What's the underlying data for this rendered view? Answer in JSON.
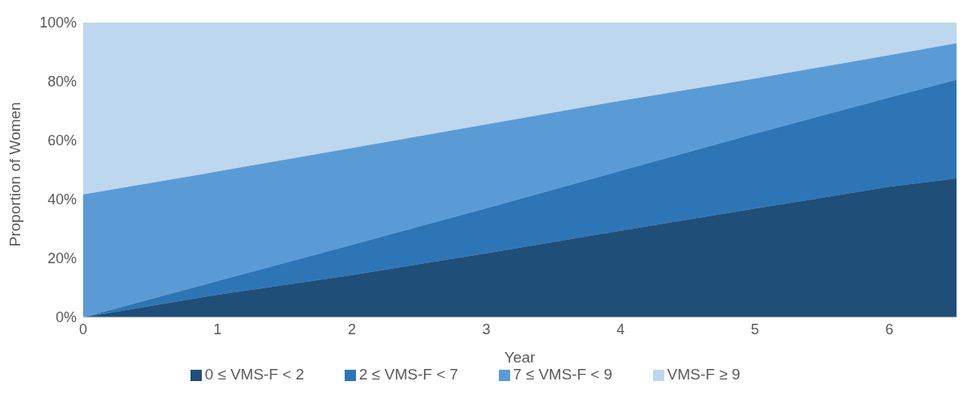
{
  "chart_data": {
    "type": "area",
    "stacked": true,
    "xlabel": "Year",
    "ylabel": "Proportion of Women",
    "x": [
      0,
      1,
      2,
      3,
      4,
      5,
      6,
      6.5
    ],
    "series": [
      {
        "name": "0 ≤ VMS-F < 2",
        "color": "#1f4e79",
        "values": [
          0,
          7.7,
          14.3,
          21.7,
          29.4,
          36.9,
          44.3,
          47.1
        ]
      },
      {
        "name": "2 ≤ VMS-F < 7",
        "color": "#2e75b6",
        "values": [
          0,
          4.6,
          10.3,
          15.3,
          20.3,
          25.4,
          30.3,
          33.5
        ]
      },
      {
        "name": "7 ≤ VMS-F < 9",
        "color": "#5b9bd5",
        "values": [
          41.7,
          37.2,
          32.9,
          28.5,
          23.8,
          18.7,
          14.4,
          12.4
        ]
      },
      {
        "name": "VMS-F ≥ 9",
        "color": "#bdd7ee",
        "values": [
          58.3,
          50.5,
          42.5,
          34.5,
          26.5,
          19,
          11,
          7
        ]
      }
    ],
    "xlim": [
      0,
      6.5
    ],
    "xticks": [
      0,
      1,
      2,
      3,
      4,
      5,
      6
    ],
    "ylim": [
      0,
      100
    ],
    "yticks": [
      {
        "value": 0,
        "label": "0%"
      },
      {
        "value": 20,
        "label": "20%"
      },
      {
        "value": 40,
        "label": "40%"
      },
      {
        "value": 60,
        "label": "60%"
      },
      {
        "value": 80,
        "label": "80%"
      },
      {
        "value": 100,
        "label": "100%"
      }
    ],
    "grid": false,
    "legend": "bottom"
  }
}
